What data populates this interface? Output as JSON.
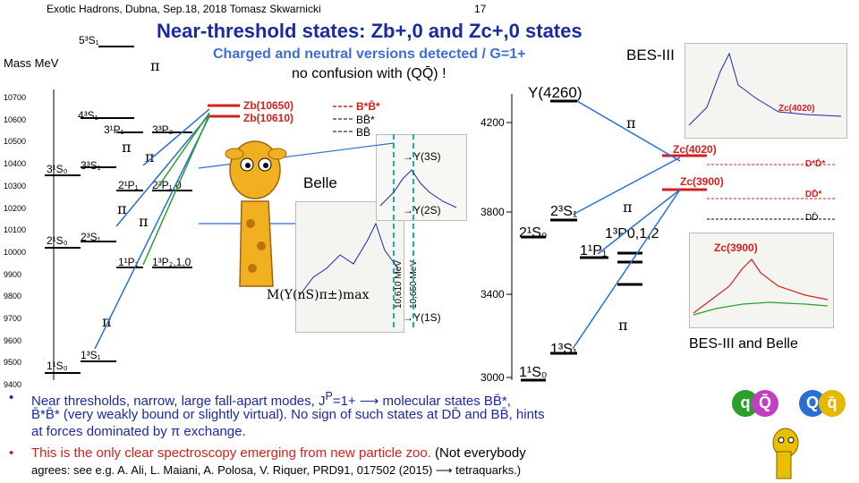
{
  "header": {
    "left": "Exotic Hadrons, Dubna, Sep.18, 2018 Tomasz Skwarnicki",
    "page": "17"
  },
  "title": "Near-threshold states: Zb+,0 and Zc+,0 states",
  "subtitle1": "Charged and neutral versions detected / G=1+",
  "subtitle2": "no confusion with (QQ̄) !",
  "bes_top": "BES-III",
  "axis": {
    "label": "Mass MeV",
    "ticks": [
      "10700",
      "10600",
      "10500",
      "10400",
      "10300",
      "10200",
      "10100",
      "10000",
      "9900",
      "9800",
      "9700",
      "9600",
      "9500",
      "9400"
    ]
  },
  "bottomonium_levels": [
    "5³S₁",
    "4³S₁",
    "3¹P₁",
    "3³P₂",
    "3¹S₀",
    "3³S₁",
    "2¹P₁",
    "2³P₁,0",
    "2¹S₀",
    "2³S₁",
    "1¹P₁",
    "1³P₂,1,0",
    "1¹S₀",
    "1³S₁"
  ],
  "zb": {
    "z1": "Zb(10650)",
    "z2": "Zb(10610)",
    "t1": "B*B̄*",
    "t2": "BB̄*",
    "t3": "BB̄"
  },
  "belle": {
    "label": "Belle",
    "u3s": "→Υ(3S)",
    "u2s": "→Υ(2S)",
    "u1s": "→Υ(1S)",
    "mass": "M(Υ(nS)π±)max",
    "v1": "10,610 MeV",
    "v2": "10,650 MeV"
  },
  "charm": {
    "y4260": "Y(4260)",
    "m4200": "4200",
    "m3800": "3800",
    "m3400": "3400",
    "m3000": "3000",
    "l1": "2³S₁",
    "l2": "2¹S₀",
    "l3": "1³P0,1,2",
    "l4": "1¹P₁",
    "l5": "1³S₁",
    "l6": "1¹S₀",
    "zc4020": "Zc(4020)",
    "zc3900": "Zc(3900)",
    "t1": "D*D̄*",
    "t2": "DD̄*",
    "t3": "DD̄",
    "zc4020b": "Zc(4020)",
    "zc3900b": "Zc(3900)"
  },
  "caption": "BES-III and Belle",
  "pi": "π",
  "bullets": {
    "b1a": "Near thresholds, narrow, large fall-apart modes, J",
    "b1b": "P",
    "b1c": "=1+ ⟶ molecular states BB̄*,",
    "b1d": "B̄*B̄* (very weakly bound or slightly virtual). No sign of such states at DD̄ and BB̄, hints",
    "b1e": "at forces dominated by π exchange.",
    "b2a": "This is the only clear spectroscopy emerging from new particle zoo.",
    "b2b": "(Not everybody",
    "b2c": "agrees: see e.g. A. Ali, L. Maiani, A. Polosa, V. Riquer, PRD91, 017502 (2015) ⟶ tetraquarks.)"
  },
  "quarks": {
    "q": "q",
    "Q": "Q",
    "Qbar": "Q̄",
    "qbar": "q̄"
  },
  "colors": {
    "title": "#1a2aa0",
    "accent": "#d4201c",
    "green": "#2aa02a",
    "teal": "#20b0a0"
  }
}
